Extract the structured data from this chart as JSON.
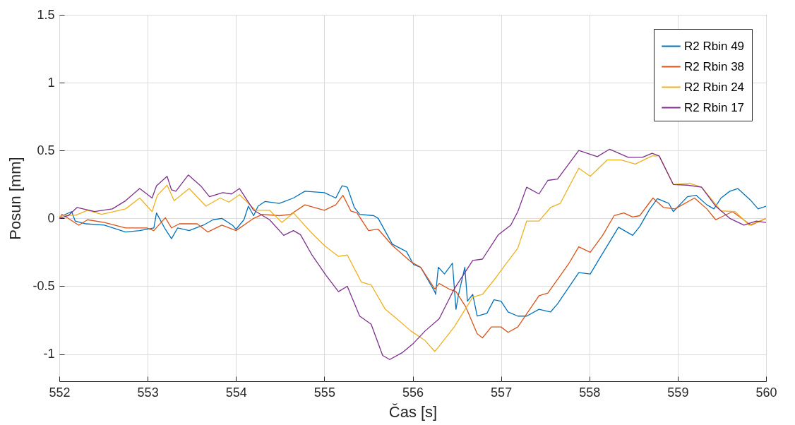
{
  "chart_data": {
    "type": "line",
    "xlabel": "Čas [s]",
    "ylabel": "Posun [mm]",
    "xlim": [
      552,
      560
    ],
    "ylim": [
      -1.2,
      1.5
    ],
    "xticks": [
      552,
      553,
      554,
      555,
      556,
      557,
      558,
      559,
      560
    ],
    "yticks": [
      -1,
      -0.5,
      0,
      0.5,
      1,
      1.5
    ],
    "grid": true,
    "legend": "top right",
    "line_style": "solid",
    "marker": "none",
    "series": [
      {
        "name": "R2 Rbin 49",
        "color": "#0072bd",
        "x": [
          552,
          552.14,
          552.18,
          552.3,
          552.51,
          552.75,
          552.91,
          553.07,
          553.1,
          553.2,
          553.27,
          553.34,
          553.47,
          553.63,
          553.74,
          553.84,
          553.96,
          554.0,
          554.09,
          554.14,
          554.2,
          554.25,
          554.33,
          554.49,
          554.65,
          554.78,
          555.0,
          555.13,
          555.2,
          555.26,
          555.34,
          555.4,
          555.56,
          555.61,
          555.77,
          555.93,
          556.01,
          556.09,
          556.25,
          556.26,
          556.29,
          556.36,
          556.45,
          556.49,
          556.52,
          556.59,
          556.62,
          556.68,
          556.73,
          556.84,
          556.92,
          557.0,
          557.08,
          557.19,
          557.29,
          557.43,
          557.56,
          557.64,
          557.88,
          558.01,
          558.12,
          558.33,
          558.49,
          558.57,
          558.68,
          558.77,
          558.9,
          558.95,
          559.11,
          559.21,
          559.33,
          559.41,
          559.49,
          559.59,
          559.68,
          559.83,
          559.91,
          560
        ],
        "values": [
          0.01,
          0.05,
          -0.02,
          -0.04,
          -0.05,
          -0.1,
          -0.09,
          -0.07,
          0.04,
          -0.08,
          -0.15,
          -0.07,
          -0.09,
          -0.05,
          -0.01,
          0,
          -0.05,
          -0.08,
          -0.01,
          0.09,
          0.02,
          0.09,
          0.125,
          0.11,
          0.15,
          0.2,
          0.19,
          0.15,
          0.24,
          0.23,
          0.08,
          0.03,
          0.02,
          0,
          -0.19,
          -0.245,
          -0.34,
          -0.36,
          -0.54,
          -0.56,
          -0.36,
          -0.41,
          -0.33,
          -0.67,
          -0.56,
          -0.36,
          -0.61,
          -0.56,
          -0.72,
          -0.7,
          -0.6,
          -0.61,
          -0.69,
          -0.72,
          -0.72,
          -0.67,
          -0.69,
          -0.63,
          -0.4,
          -0.41,
          -0.29,
          -0.065,
          -0.125,
          -0.06,
          0.065,
          0.145,
          0.11,
          0.05,
          0.16,
          0.17,
          0.1,
          0.07,
          0.15,
          0.2,
          0.22,
          0.13,
          0.07,
          0.09
        ]
      },
      {
        "name": "R2 Rbin 38",
        "color": "#d95319",
        "x": [
          552,
          552.03,
          552.22,
          552.32,
          552.51,
          552.75,
          552.99,
          553.07,
          553.2,
          553.27,
          553.36,
          553.56,
          553.68,
          553.84,
          554.0,
          554.2,
          554.3,
          554.49,
          554.62,
          554.78,
          555.0,
          555.13,
          555.21,
          555.3,
          555.37,
          555.5,
          555.61,
          555.77,
          555.98,
          556.09,
          556.25,
          556.3,
          556.41,
          556.49,
          556.6,
          556.73,
          556.79,
          556.89,
          557.0,
          557.08,
          557.19,
          557.43,
          557.53,
          557.77,
          557.88,
          558.01,
          558.15,
          558.28,
          558.39,
          558.49,
          558.57,
          558.72,
          558.84,
          558.97,
          559.19,
          559.33,
          559.43,
          559.62,
          559.83,
          560
        ],
        "values": [
          0,
          0.03,
          -0.05,
          -0.01,
          -0.03,
          -0.07,
          -0.07,
          -0.09,
          0.005,
          -0.07,
          -0.04,
          -0.04,
          -0.1,
          -0.05,
          -0.09,
          0,
          0.03,
          0.02,
          0.03,
          0.1,
          0.06,
          0.1,
          0.17,
          0.055,
          0.04,
          -0.09,
          -0.08,
          -0.2,
          -0.32,
          -0.36,
          -0.52,
          -0.48,
          -0.52,
          -0.54,
          -0.65,
          -0.85,
          -0.88,
          -0.8,
          -0.8,
          -0.84,
          -0.8,
          -0.57,
          -0.55,
          -0.33,
          -0.21,
          -0.25,
          -0.125,
          0.02,
          0.04,
          0.01,
          0.02,
          0.15,
          0.08,
          0.07,
          0.15,
          0.07,
          -0.01,
          0.05,
          -0.05,
          0
        ]
      },
      {
        "name": "R2 Rbin 24",
        "color": "#edb120",
        "x": [
          552,
          552.03,
          552.19,
          552.32,
          552.48,
          552.75,
          552.91,
          553.05,
          553.11,
          553.22,
          553.3,
          553.47,
          553.66,
          553.82,
          553.92,
          554.04,
          554.22,
          554.38,
          554.52,
          554.65,
          554.86,
          555.0,
          555.16,
          555.26,
          555.42,
          555.53,
          555.69,
          555.82,
          555.98,
          556.14,
          556.25,
          556.29,
          556.47,
          556.68,
          556.79,
          556.95,
          557.05,
          557.19,
          557.29,
          557.43,
          557.56,
          557.67,
          557.88,
          558.01,
          558.2,
          558.36,
          558.52,
          558.71,
          558.79,
          558.95,
          559.13,
          559.27,
          559.49,
          559.65,
          559.81,
          560
        ],
        "values": [
          0.01,
          0.02,
          0.025,
          0.06,
          0.03,
          0.07,
          0.15,
          0.05,
          0.17,
          0.245,
          0.13,
          0.22,
          0.09,
          0.15,
          0.12,
          0.175,
          0.06,
          0.06,
          -0.03,
          0.04,
          -0.11,
          -0.2,
          -0.28,
          -0.27,
          -0.47,
          -0.49,
          -0.67,
          -0.74,
          -0.83,
          -0.9,
          -0.98,
          -0.95,
          -0.8,
          -0.58,
          -0.56,
          -0.43,
          -0.34,
          -0.22,
          -0.02,
          -0.02,
          0.08,
          0.11,
          0.37,
          0.31,
          0.43,
          0.43,
          0.4,
          0.46,
          0.46,
          0.25,
          0.26,
          0.23,
          0.055,
          0.05,
          -0.05,
          0
        ]
      },
      {
        "name": "R2 Rbin 17",
        "color": "#7e2f8e",
        "x": [
          552,
          552.1,
          552.2,
          552.4,
          552.6,
          552.75,
          552.91,
          553.05,
          553.1,
          553.22,
          553.27,
          553.32,
          553.46,
          553.6,
          553.7,
          553.85,
          553.95,
          554.04,
          554.2,
          554.38,
          554.54,
          554.65,
          554.73,
          554.86,
          555.02,
          555.16,
          555.26,
          555.4,
          555.53,
          555.66,
          555.74,
          555.88,
          556.01,
          556.14,
          556.3,
          556.47,
          556.68,
          556.79,
          556.97,
          557.11,
          557.19,
          557.29,
          557.43,
          557.53,
          557.64,
          557.88,
          558.09,
          558.23,
          558.44,
          558.6,
          558.71,
          558.79,
          558.95,
          559.11,
          559.27,
          559.43,
          559.59,
          559.75,
          559.89,
          560
        ],
        "values": [
          0,
          0.02,
          0.08,
          0.05,
          0.07,
          0.13,
          0.22,
          0.15,
          0.24,
          0.31,
          0.21,
          0.2,
          0.32,
          0.24,
          0.16,
          0.19,
          0.18,
          0.22,
          0.06,
          -0.01,
          -0.125,
          -0.09,
          -0.12,
          -0.27,
          -0.42,
          -0.54,
          -0.5,
          -0.72,
          -0.78,
          -1.01,
          -1.04,
          -0.99,
          -0.92,
          -0.83,
          -0.74,
          -0.52,
          -0.31,
          -0.3,
          -0.12,
          -0.05,
          0.05,
          0.23,
          0.18,
          0.28,
          0.29,
          0.5,
          0.455,
          0.51,
          0.45,
          0.45,
          0.48,
          0.46,
          0.25,
          0.245,
          0.23,
          0.09,
          0,
          -0.05,
          -0.02,
          -0.03
        ]
      }
    ]
  }
}
